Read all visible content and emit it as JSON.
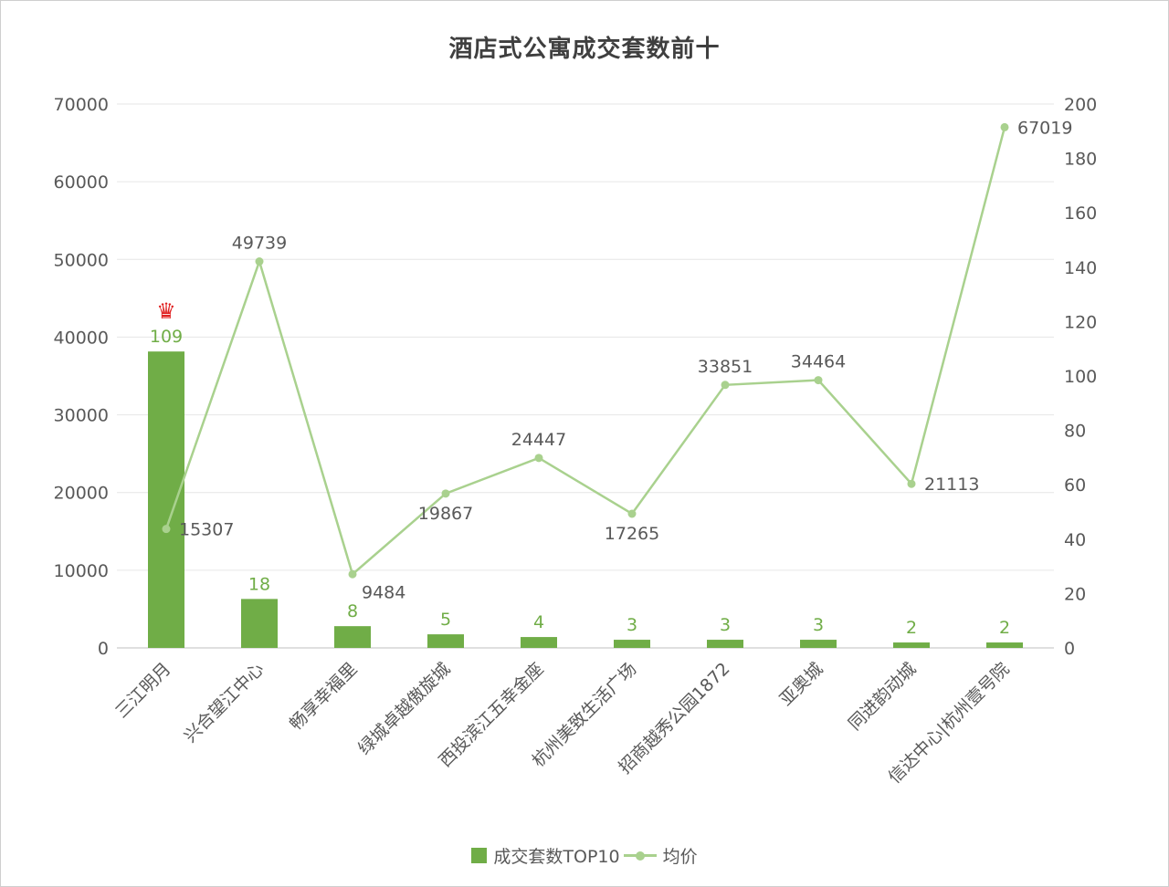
{
  "title": "酒店式公寓成交套数前十",
  "legend": {
    "bar_label": "成交套数TOP10",
    "line_label": "均价"
  },
  "colors": {
    "bar": "#70ad47",
    "line": "#a9d18e",
    "bar_label": "#70ad47",
    "point_label": "#595959",
    "axis_text": "#595959",
    "grid": "#e6e6e6",
    "axis_line": "#bfbfbf",
    "title": "#3f3f3f",
    "crown": "#e02020"
  },
  "chart_data": {
    "type": "bar+line",
    "title": "酒店式公寓成交套数前十",
    "categories": [
      "三江明月",
      "兴合望江中心",
      "畅享幸福里",
      "绿城卓越傲旋城",
      "西投滨江五幸金座",
      "杭州美致生活广场",
      "招商越秀公园1872",
      "亚奥城",
      "同进韵动城",
      "信达中心|杭州壹号院"
    ],
    "series": [
      {
        "name": "成交套数TOP10",
        "type": "bar",
        "axis": "right",
        "values": [
          109,
          18,
          8,
          5,
          4,
          3,
          3,
          3,
          2,
          2
        ]
      },
      {
        "name": "均价",
        "type": "line",
        "axis": "left",
        "values": [
          15307,
          49739,
          9484,
          19867,
          24447,
          17265,
          33851,
          34464,
          21113,
          67019
        ]
      }
    ],
    "left_axis": {
      "min": 0,
      "max": 70000,
      "step": 10000
    },
    "right_axis": {
      "min": 0,
      "max": 200,
      "step": 20
    },
    "grid": true,
    "legend_position": "bottom",
    "annotations": [
      {
        "type": "crown",
        "category_index": 0,
        "series": "bar"
      }
    ],
    "price_label_placement": [
      "right",
      "top",
      "bottom-right",
      "bottom",
      "top",
      "bottom",
      "top",
      "top",
      "right",
      "right"
    ]
  }
}
